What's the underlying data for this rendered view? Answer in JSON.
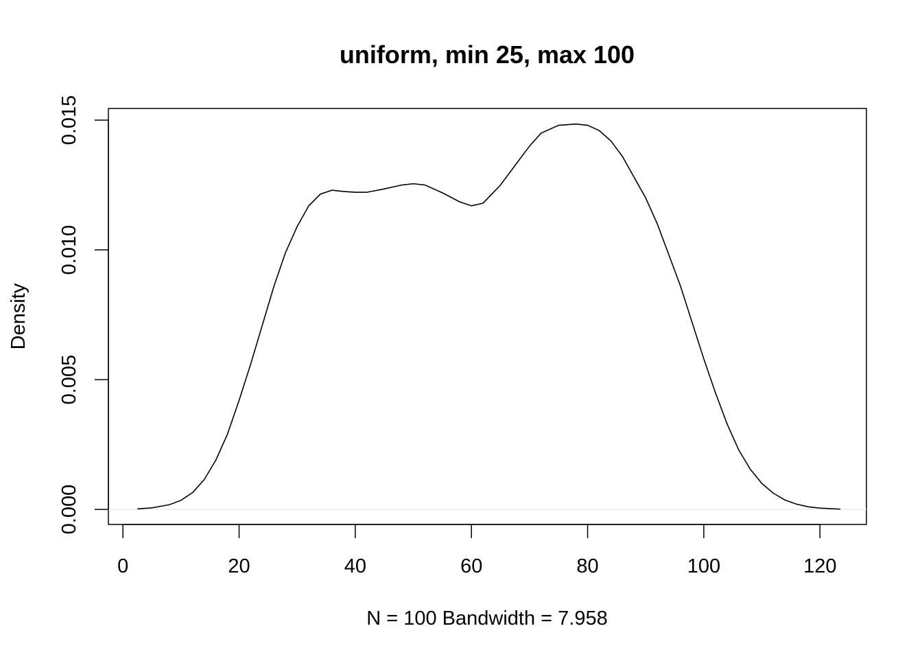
{
  "chart_data": {
    "type": "line",
    "title": "uniform, min 25, max 100",
    "xlabel": "N = 100   Bandwidth = 7.958",
    "ylabel": "Density",
    "xlim": [
      -2.5,
      128
    ],
    "ylim": [
      -0.00058,
      0.01545
    ],
    "x_ticks": [
      0,
      20,
      40,
      60,
      80,
      100,
      120
    ],
    "y_ticks": [
      0.0,
      0.005,
      0.01,
      0.015
    ],
    "x_tick_labels": [
      "0",
      "20",
      "40",
      "60",
      "80",
      "100",
      "120"
    ],
    "y_tick_labels": [
      "0.000",
      "0.005",
      "0.010",
      "0.015"
    ],
    "grid": false,
    "series": [
      {
        "x": [
          2.5,
          5,
          8,
          10,
          12,
          14,
          16,
          18,
          20,
          22,
          24,
          26,
          28,
          30,
          32,
          34,
          36,
          38,
          40,
          42,
          45,
          48,
          50,
          52,
          55,
          58,
          60,
          62,
          65,
          68,
          70,
          72,
          75,
          78,
          80,
          82,
          84,
          86,
          88,
          90,
          92,
          94,
          96,
          98,
          100,
          102,
          104,
          106,
          108,
          110,
          112,
          114,
          116,
          118,
          120,
          123.5
        ],
        "y": [
          2e-05,
          6e-05,
          0.00018,
          0.00035,
          0.00065,
          0.00115,
          0.0019,
          0.0029,
          0.0042,
          0.0056,
          0.0071,
          0.0086,
          0.0099,
          0.0109,
          0.0117,
          0.01215,
          0.0123,
          0.01225,
          0.01222,
          0.01222,
          0.01235,
          0.0125,
          0.01255,
          0.0125,
          0.0122,
          0.01185,
          0.0117,
          0.0118,
          0.0125,
          0.0134,
          0.014,
          0.0145,
          0.0148,
          0.01485,
          0.0148,
          0.0146,
          0.0142,
          0.0136,
          0.0128,
          0.012,
          0.011,
          0.0098,
          0.0086,
          0.0072,
          0.0058,
          0.0045,
          0.0033,
          0.0023,
          0.00155,
          0.001,
          0.00062,
          0.00036,
          0.0002,
          0.0001,
          5e-05,
          1e-05
        ]
      }
    ]
  }
}
